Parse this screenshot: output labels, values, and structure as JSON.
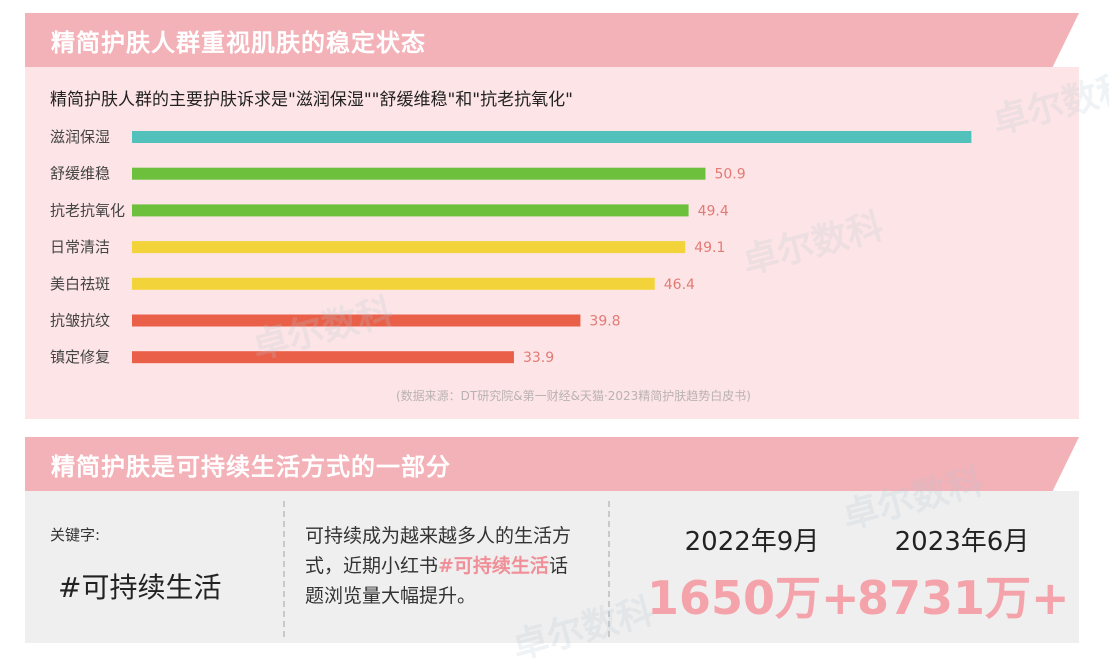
{
  "section1": {
    "title": "精简护肤人群重视肌肤的稳定状态",
    "subtitle": "精简护肤人群的主要护肤诉求是\"滋润保湿\"\"舒缓维稳\"和\"抗老抗氧化\"",
    "source": "(数据来源：DT研究院&第一财经&天猫·2023精简护肤趋势白皮书)"
  },
  "chart_data": {
    "type": "bar",
    "orientation": "horizontal",
    "categories": [
      "滋润保湿",
      "舒缓维稳",
      "抗老抗氧化",
      "日常清洁",
      "美白祛斑",
      "抗皱抗纹",
      "镇定修复"
    ],
    "values": [
      74.5,
      50.9,
      49.4,
      49.1,
      46.4,
      39.8,
      33.9
    ],
    "labels": [
      "",
      "50.9",
      "49.4",
      "49.1",
      "46.4",
      "39.8",
      "33.9"
    ],
    "colors": [
      "#52c1bb",
      "#6cc03c",
      "#6cc03c",
      "#f2d43a",
      "#f2d43a",
      "#ea5f48",
      "#ea5f48"
    ],
    "label_color": "#e27b76",
    "xlim": [
      0,
      75
    ]
  },
  "section2": {
    "title": "精简护肤是可持续生活方式的一部分",
    "keyword_label": "关键字:",
    "keyword": "#可持续生活",
    "desc_part1": "可持续成为越来越多人的生活方式，近期小红书",
    "desc_highlight": "#可持续生活",
    "desc_part2": "话题浏览量大幅提升。",
    "stats": [
      {
        "date": "2022年9月",
        "value": "1650万+"
      },
      {
        "date": "2023年6月",
        "value": "8731万+"
      }
    ]
  },
  "watermark": {
    "text": "卓尔数科"
  }
}
